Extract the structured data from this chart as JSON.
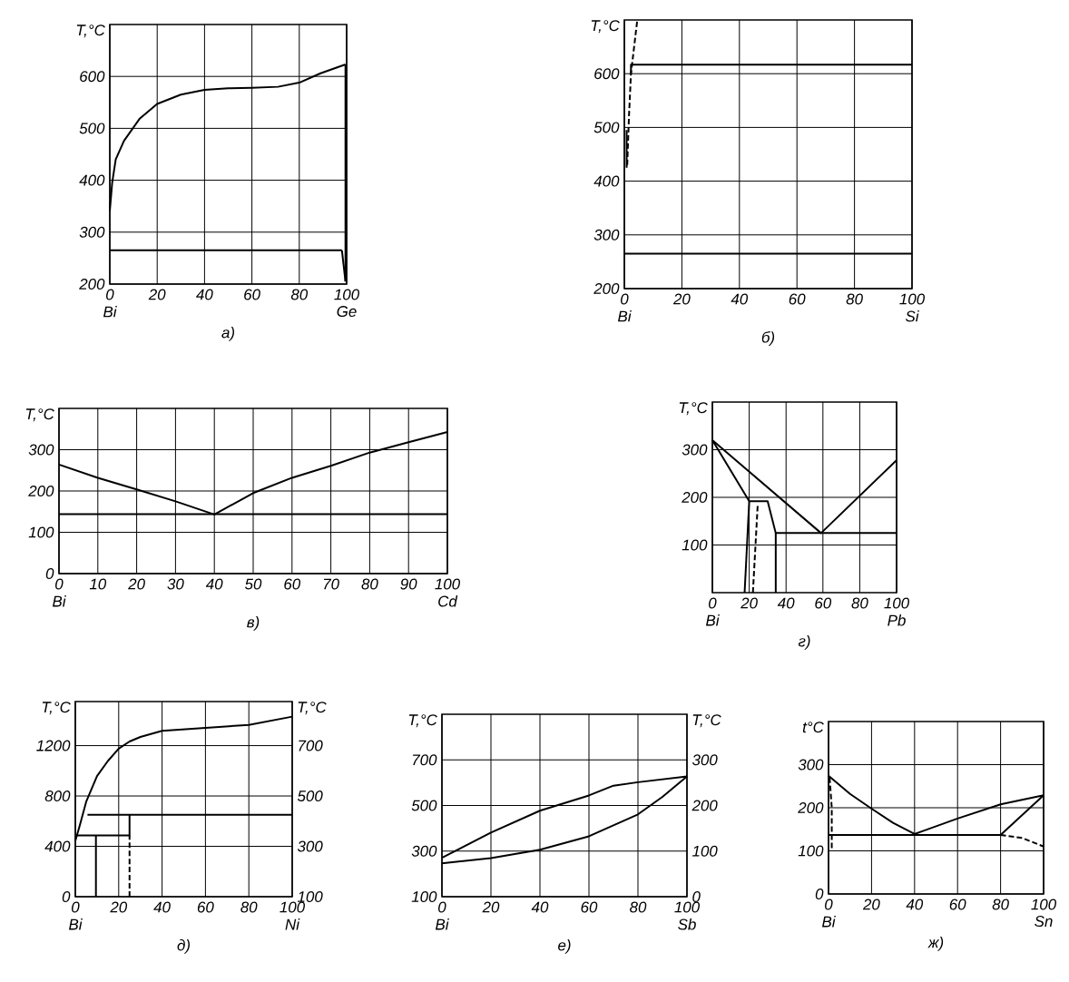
{
  "chart_data": [
    {
      "type": "line",
      "title": "а)",
      "ylabel": "T,°C",
      "grid": true,
      "line_style": "solid",
      "xlim": [
        0,
        100
      ],
      "ylim": [
        200,
        700
      ],
      "xticks": [
        0,
        20,
        40,
        60,
        80,
        100
      ],
      "yticks": [
        200,
        300,
        400,
        500,
        600
      ],
      "annotations": [
        "Bi",
        "Ge"
      ],
      "series": [
        {
          "color": "#000000",
          "x": [
            0,
            1,
            2.5,
            6,
            12.5,
            20,
            30,
            40,
            50,
            60,
            71,
            80,
            89,
            99.5
          ],
          "values": [
            341,
            395,
            440,
            476,
            518,
            547,
            565,
            574,
            577,
            578,
            580,
            588,
            606,
            623
          ]
        },
        {
          "color": "#000000",
          "x": [
            0,
            98
          ],
          "values": [
            265,
            265
          ]
        },
        {
          "color": "#000000",
          "x": [
            99.5,
            99.5
          ],
          "values": [
            623,
            205
          ]
        },
        {
          "color": "#000000",
          "x": [
            98,
            99.5
          ],
          "values": [
            265,
            205
          ]
        }
      ]
    },
    {
      "type": "line",
      "title": "б)",
      "ylabel": "T,°C",
      "grid": true,
      "line_style": "solid",
      "xlim": [
        0,
        100
      ],
      "ylim": [
        200,
        700
      ],
      "xticks": [
        0,
        20,
        40,
        60,
        80,
        100
      ],
      "yticks": [
        200,
        300,
        400,
        500,
        600
      ],
      "annotations": [
        "Bi",
        "Si"
      ],
      "series": [
        {
          "color": "#000000",
          "x": [
            2.3,
            2.3,
            100
          ],
          "values": [
            600,
            617,
            617
          ]
        },
        {
          "color": "#000000",
          "x": [
            0,
            100
          ],
          "values": [
            265,
            265
          ]
        },
        {
          "color": "#000000",
          "line_style": "dashed",
          "x": [
            1.0,
            1.6,
            2.3,
            4.5
          ],
          "values": [
            430,
            520,
            600,
            700
          ]
        },
        {
          "color": "#000000",
          "x": [
            0.8,
            0.8
          ],
          "values": [
            425,
            495
          ]
        }
      ]
    },
    {
      "type": "line",
      "title": "в)",
      "ylabel": "T,°C",
      "grid": true,
      "line_style": "solid",
      "xlim": [
        0,
        100
      ],
      "ylim": [
        0,
        400
      ],
      "xticks": [
        0,
        10,
        20,
        30,
        40,
        50,
        60,
        70,
        80,
        90,
        100
      ],
      "yticks": [
        0,
        100,
        200,
        300
      ],
      "annotations": [
        "Bi",
        "Cd"
      ],
      "series": [
        {
          "color": "#000000",
          "x": [
            0,
            10,
            20,
            30,
            40,
            50,
            60,
            70,
            80,
            90,
            100
          ],
          "values": [
            264,
            232,
            204,
            175,
            143,
            195,
            232,
            261,
            293,
            318,
            343
          ]
        },
        {
          "color": "#000000",
          "x": [
            0,
            100
          ],
          "values": [
            144,
            144
          ]
        }
      ]
    },
    {
      "type": "line",
      "title": "г)",
      "ylabel": "T,°C",
      "grid": true,
      "line_style": "solid",
      "xlim": [
        0,
        100
      ],
      "ylim": [
        0,
        400
      ],
      "xticks": [
        0,
        20,
        40,
        60,
        80,
        100
      ],
      "yticks": [
        100,
        200,
        300
      ],
      "annotations": [
        "Bi",
        "Pb"
      ],
      "series": [
        {
          "color": "#000000",
          "x": [
            0,
            59,
            100
          ],
          "values": [
            320,
            125,
            278
          ]
        },
        {
          "color": "#000000",
          "x": [
            0,
            20,
            30,
            34.4
          ],
          "values": [
            320,
            192,
            192,
            125
          ]
        },
        {
          "color": "#000000",
          "x": [
            17.5,
            20
          ],
          "values": [
            0,
            192
          ]
        },
        {
          "color": "#000000",
          "line_style": "dashed",
          "x": [
            22,
            24.6
          ],
          "values": [
            0,
            184
          ]
        },
        {
          "color": "#000000",
          "x": [
            34.4,
            34.4,
            100
          ],
          "values": [
            0,
            125,
            125
          ]
        }
      ]
    },
    {
      "type": "line",
      "title": "д)",
      "ylabel": "T,°C",
      "y2label": "T,°C",
      "grid": true,
      "line_style": "solid",
      "xlim": [
        0,
        100
      ],
      "ylim": [
        0,
        1550
      ],
      "xticks": [
        0,
        20,
        40,
        60,
        80,
        100
      ],
      "yticks": [
        0,
        400,
        800,
        1200
      ],
      "y2lim": [
        100,
        875
      ],
      "y2ticks": [
        100,
        300,
        500,
        700
      ],
      "annotations": [
        "Bi",
        "Ni"
      ],
      "series": [
        {
          "color": "#000000",
          "x": [
            0,
            2,
            5,
            10,
            15,
            20,
            25,
            30,
            40,
            60,
            80,
            100
          ],
          "values": [
            443,
            563,
            754,
            958,
            1078,
            1176,
            1233,
            1269,
            1317,
            1341,
            1365,
            1430
          ]
        },
        {
          "color": "#000000",
          "x": [
            5.6,
            100
          ],
          "values": [
            651,
            651
          ]
        },
        {
          "color": "#000000",
          "x": [
            0.5,
            25,
            25
          ],
          "values": [
            486,
            486,
            651
          ]
        },
        {
          "color": "#000000",
          "x": [
            9.5,
            9.5
          ],
          "values": [
            0,
            486
          ]
        },
        {
          "color": "#000000",
          "line_style": "dashed",
          "x": [
            25,
            25
          ],
          "values": [
            0,
            486
          ]
        }
      ]
    },
    {
      "type": "line",
      "title": "е)",
      "ylabel": "T,°C",
      "y2label": "T,°C",
      "grid": true,
      "line_style": "solid",
      "xlim": [
        0,
        100
      ],
      "ylim": [
        100,
        900
      ],
      "xticks": [
        0,
        20,
        40,
        60,
        80,
        100
      ],
      "yticks": [
        100,
        300,
        500,
        700
      ],
      "y2lim": [
        0,
        400
      ],
      "y2ticks": [
        0,
        100,
        200,
        300
      ],
      "annotations": [
        "Bi",
        "Sb"
      ],
      "series": [
        {
          "color": "#000000",
          "x": [
            0,
            20,
            40,
            60,
            70,
            80,
            100
          ],
          "values": [
            271,
            381,
            477,
            544,
            587,
            602,
            627
          ]
        },
        {
          "color": "#000000",
          "x": [
            0,
            20,
            40,
            60,
            80,
            90,
            100
          ],
          "values": [
            246,
            269,
            306,
            365,
            461,
            538,
            627
          ]
        }
      ]
    },
    {
      "type": "line",
      "title": "ж)",
      "ylabel": "t°C",
      "grid": true,
      "line_style": "solid",
      "xlim": [
        0,
        100
      ],
      "ylim": [
        0,
        400
      ],
      "xticks": [
        0,
        20,
        40,
        60,
        80,
        100
      ],
      "yticks": [
        0,
        100,
        200,
        300
      ],
      "annotations": [
        "Bi",
        "Sn"
      ],
      "series": [
        {
          "color": "#000000",
          "x": [
            0,
            10,
            20,
            30,
            40,
            60,
            80,
            100
          ],
          "values": [
            274,
            232,
            198,
            165,
            139,
            175,
            208,
            229
          ]
        },
        {
          "color": "#000000",
          "x": [
            0,
            80,
            100
          ],
          "values": [
            137,
            137,
            229
          ]
        },
        {
          "color": "#000000",
          "line_style": "dashed",
          "x": [
            80,
            90,
            100
          ],
          "values": [
            137,
            130,
            110
          ]
        },
        {
          "color": "#000000",
          "line_style": "dashed",
          "x": [
            0.5,
            1.5,
            1.5
          ],
          "values": [
            270,
            200,
            105
          ]
        }
      ]
    }
  ]
}
